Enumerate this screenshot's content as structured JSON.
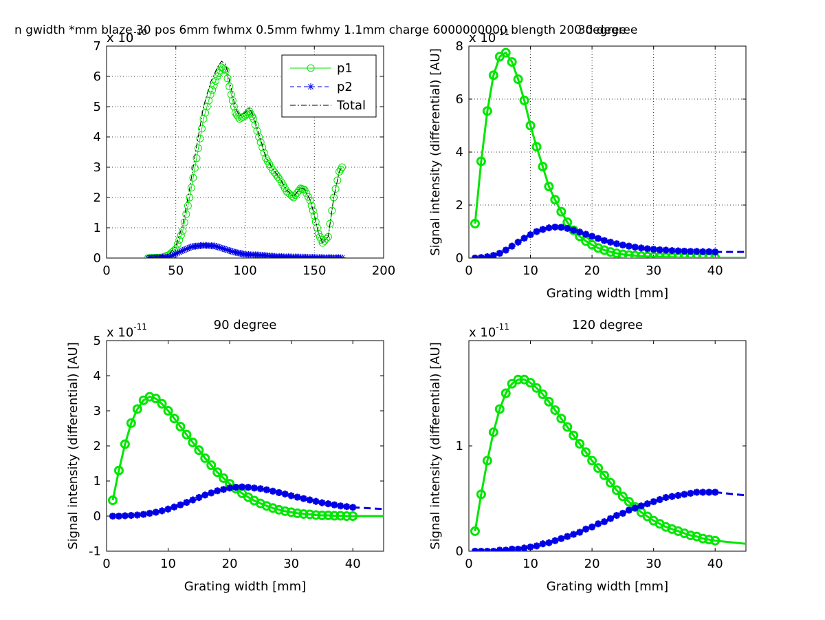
{
  "figure": {
    "colors": {
      "p1": "#00e600",
      "p2": "#0000e6",
      "total": "#000000",
      "grid": "#000000",
      "axes": "#000000"
    }
  },
  "chart_data": [
    {
      "type": "line",
      "title": "n gwidth *mm blaze 30 pos 6mm fwhmx 0.5mm fwhmy 1.1mm charge 6000000000 blength 200 degree",
      "title_overlap": "30 degree",
      "xlabel": "",
      "ylabel": "",
      "xlim": [
        0,
        200
      ],
      "ylim": [
        0,
        7
      ],
      "xticks": [
        0,
        50,
        100,
        150,
        200
      ],
      "yticks": [
        0,
        1,
        2,
        3,
        4,
        5,
        6,
        7
      ],
      "exponent_label": "x 10",
      "exponent_power": "-10",
      "grid": true,
      "legend": {
        "position": "top-right",
        "entries": [
          "p1",
          "p2",
          "Total"
        ]
      },
      "series": [
        {
          "name": "p1",
          "marker": "circle",
          "style": "solid",
          "points": [
            [
              30,
              0
            ],
            [
              40,
              0.02
            ],
            [
              45,
              0.1
            ],
            [
              50,
              0.3
            ],
            [
              55,
              0.9
            ],
            [
              60,
              2.0
            ],
            [
              65,
              3.3
            ],
            [
              70,
              4.6
            ],
            [
              75,
              5.4
            ],
            [
              80,
              6.0
            ],
            [
              83,
              6.3
            ],
            [
              86,
              6.2
            ],
            [
              90,
              5.4
            ],
            [
              93,
              4.8
            ],
            [
              96,
              4.6
            ],
            [
              100,
              4.7
            ],
            [
              103,
              4.85
            ],
            [
              106,
              4.6
            ],
            [
              110,
              4.0
            ],
            [
              115,
              3.3
            ],
            [
              120,
              2.9
            ],
            [
              125,
              2.6
            ],
            [
              130,
              2.2
            ],
            [
              135,
              2.0
            ],
            [
              140,
              2.3
            ],
            [
              143,
              2.25
            ],
            [
              147,
              1.9
            ],
            [
              150,
              1.4
            ],
            [
              153,
              0.8
            ],
            [
              156,
              0.5
            ],
            [
              160,
              0.7
            ],
            [
              164,
              2.0
            ],
            [
              168,
              2.85
            ],
            [
              170,
              3.0
            ]
          ]
        },
        {
          "name": "p2",
          "marker": "star",
          "style": "dashed",
          "points": [
            [
              30,
              0
            ],
            [
              45,
              0.03
            ],
            [
              55,
              0.25
            ],
            [
              62,
              0.38
            ],
            [
              70,
              0.42
            ],
            [
              78,
              0.4
            ],
            [
              85,
              0.3
            ],
            [
              92,
              0.2
            ],
            [
              100,
              0.12
            ],
            [
              110,
              0.1
            ],
            [
              120,
              0.06
            ],
            [
              130,
              0.04
            ],
            [
              140,
              0.03
            ],
            [
              150,
              0.02
            ],
            [
              160,
              0.01
            ],
            [
              170,
              0.01
            ]
          ]
        },
        {
          "name": "Total",
          "marker": "none",
          "style": "dashdot",
          "points": [
            [
              30,
              0
            ],
            [
              45,
              0.12
            ],
            [
              50,
              0.4
            ],
            [
              55,
              1.1
            ],
            [
              60,
              2.3
            ],
            [
              65,
              3.7
            ],
            [
              70,
              5.0
            ],
            [
              75,
              5.8
            ],
            [
              80,
              6.3
            ],
            [
              83,
              6.5
            ],
            [
              86,
              6.4
            ],
            [
              90,
              5.6
            ],
            [
              93,
              4.95
            ],
            [
              96,
              4.7
            ],
            [
              100,
              4.8
            ],
            [
              103,
              4.95
            ],
            [
              106,
              4.7
            ],
            [
              110,
              4.1
            ],
            [
              115,
              3.35
            ],
            [
              120,
              2.95
            ],
            [
              125,
              2.65
            ],
            [
              130,
              2.25
            ],
            [
              135,
              2.03
            ],
            [
              140,
              2.33
            ],
            [
              143,
              2.28
            ],
            [
              147,
              1.92
            ],
            [
              150,
              1.42
            ],
            [
              153,
              0.82
            ],
            [
              156,
              0.52
            ],
            [
              160,
              0.71
            ],
            [
              164,
              2.01
            ],
            [
              168,
              2.86
            ],
            [
              170,
              3.01
            ]
          ]
        }
      ]
    },
    {
      "type": "line",
      "title": "",
      "xlabel": "Grating width [mm]",
      "ylabel": "Signal intensity (differential) [AU]",
      "xlim": [
        0,
        45
      ],
      "ylim": [
        0,
        8
      ],
      "xticks": [
        0,
        10,
        20,
        30,
        40
      ],
      "yticks": [
        0,
        2,
        4,
        6,
        8
      ],
      "exponent_label": "x 10",
      "exponent_power": "-11",
      "grid": true,
      "series": [
        {
          "name": "p1",
          "marker": "circle",
          "style": "solid",
          "width": 3,
          "x": [
            1,
            2,
            3,
            4,
            5,
            6,
            7,
            8,
            9,
            10,
            11,
            12,
            13,
            14,
            15,
            16,
            17,
            18,
            19,
            20,
            21,
            22,
            23,
            24,
            25,
            26,
            27,
            28,
            29,
            30,
            31,
            32,
            33,
            34,
            35,
            36,
            37,
            38,
            39,
            40
          ],
          "y": [
            1.3,
            3.65,
            5.55,
            6.9,
            7.6,
            7.75,
            7.4,
            6.75,
            5.95,
            5.0,
            4.2,
            3.45,
            2.7,
            2.2,
            1.75,
            1.35,
            1.05,
            0.82,
            0.64,
            0.5,
            0.38,
            0.3,
            0.23,
            0.18,
            0.14,
            0.11,
            0.09,
            0.07,
            0.06,
            0.05,
            0.04,
            0.03,
            0.03,
            0.02,
            0.02,
            0.02,
            0.01,
            0.01,
            0.01,
            0.01
          ],
          "extend_to": [
            45,
            0.01
          ]
        },
        {
          "name": "p2",
          "marker": "star",
          "style": "dashed",
          "width": 3,
          "x": [
            1,
            2,
            3,
            4,
            5,
            6,
            7,
            8,
            9,
            10,
            11,
            12,
            13,
            14,
            15,
            16,
            17,
            18,
            19,
            20,
            21,
            22,
            23,
            24,
            25,
            26,
            27,
            28,
            29,
            30,
            31,
            32,
            33,
            34,
            35,
            36,
            37,
            38,
            39,
            40
          ],
          "y": [
            0.0,
            0.02,
            0.05,
            0.1,
            0.18,
            0.3,
            0.45,
            0.6,
            0.75,
            0.88,
            1.0,
            1.08,
            1.14,
            1.17,
            1.16,
            1.12,
            1.05,
            0.98,
            0.9,
            0.82,
            0.74,
            0.66,
            0.6,
            0.54,
            0.49,
            0.45,
            0.41,
            0.38,
            0.35,
            0.33,
            0.31,
            0.3,
            0.28,
            0.27,
            0.26,
            0.25,
            0.25,
            0.24,
            0.24,
            0.23
          ],
          "extend_to": [
            45,
            0.23
          ]
        }
      ]
    },
    {
      "type": "line",
      "title": "90 degree",
      "xlabel": "Grating width [mm]",
      "ylabel": "Signal intensity (differential) [AU]",
      "xlim": [
        0,
        45
      ],
      "ylim": [
        -1,
        5
      ],
      "xticks": [
        0,
        10,
        20,
        30,
        40
      ],
      "yticks": [
        -1,
        0,
        1,
        2,
        3,
        4,
        5
      ],
      "exponent_label": "x 10",
      "exponent_power": "-11",
      "grid": false,
      "series": [
        {
          "name": "p1",
          "marker": "circle",
          "style": "solid",
          "width": 3,
          "x": [
            1,
            2,
            3,
            4,
            5,
            6,
            7,
            8,
            9,
            10,
            11,
            12,
            13,
            14,
            15,
            16,
            17,
            18,
            19,
            20,
            21,
            22,
            23,
            24,
            25,
            26,
            27,
            28,
            29,
            30,
            31,
            32,
            33,
            34,
            35,
            36,
            37,
            38,
            39,
            40
          ],
          "y": [
            0.45,
            1.3,
            2.05,
            2.65,
            3.05,
            3.3,
            3.4,
            3.35,
            3.2,
            3.0,
            2.78,
            2.55,
            2.32,
            2.1,
            1.88,
            1.65,
            1.45,
            1.25,
            1.08,
            0.92,
            0.78,
            0.65,
            0.54,
            0.44,
            0.36,
            0.29,
            0.23,
            0.18,
            0.14,
            0.11,
            0.08,
            0.06,
            0.05,
            0.03,
            0.02,
            0.02,
            0.01,
            0.01,
            0.0,
            0.0
          ],
          "extend_to": [
            45,
            0.0
          ]
        },
        {
          "name": "p2",
          "marker": "star",
          "style": "dashed",
          "width": 3,
          "x": [
            1,
            2,
            3,
            4,
            5,
            6,
            7,
            8,
            9,
            10,
            11,
            12,
            13,
            14,
            15,
            16,
            17,
            18,
            19,
            20,
            21,
            22,
            23,
            24,
            25,
            26,
            27,
            28,
            29,
            30,
            31,
            32,
            33,
            34,
            35,
            36,
            37,
            38,
            39,
            40
          ],
          "y": [
            0.0,
            0.0,
            0.01,
            0.02,
            0.03,
            0.05,
            0.08,
            0.11,
            0.15,
            0.2,
            0.26,
            0.32,
            0.39,
            0.46,
            0.53,
            0.6,
            0.66,
            0.72,
            0.76,
            0.8,
            0.82,
            0.83,
            0.82,
            0.8,
            0.78,
            0.75,
            0.71,
            0.67,
            0.63,
            0.58,
            0.54,
            0.5,
            0.46,
            0.42,
            0.38,
            0.35,
            0.32,
            0.29,
            0.27,
            0.25
          ],
          "extend_to": [
            45,
            0.2
          ]
        }
      ]
    },
    {
      "type": "line",
      "title": "120 degree",
      "xlabel": "Grating width [mm]",
      "ylabel": "Signal intensity (differential) [AU]",
      "xlim": [
        0,
        45
      ],
      "ylim": [
        0,
        2
      ],
      "xticks": [
        0,
        10,
        20,
        30,
        40
      ],
      "yticks": [
        0,
        1
      ],
      "exponent_label": "x 10",
      "exponent_power": "-11",
      "grid": false,
      "series": [
        {
          "name": "p1",
          "marker": "circle",
          "style": "solid",
          "width": 3,
          "x": [
            1,
            2,
            3,
            4,
            5,
            6,
            7,
            8,
            9,
            10,
            11,
            12,
            13,
            14,
            15,
            16,
            17,
            18,
            19,
            20,
            21,
            22,
            23,
            24,
            25,
            26,
            27,
            28,
            29,
            30,
            31,
            32,
            33,
            34,
            35,
            36,
            37,
            38,
            39,
            40
          ],
          "y": [
            0.19,
            0.54,
            0.86,
            1.13,
            1.35,
            1.5,
            1.59,
            1.63,
            1.63,
            1.6,
            1.55,
            1.49,
            1.42,
            1.34,
            1.26,
            1.18,
            1.1,
            1.02,
            0.94,
            0.86,
            0.79,
            0.72,
            0.65,
            0.58,
            0.52,
            0.47,
            0.42,
            0.37,
            0.33,
            0.29,
            0.26,
            0.23,
            0.21,
            0.19,
            0.17,
            0.15,
            0.14,
            0.12,
            0.11,
            0.1
          ],
          "extend_to": [
            45,
            0.07
          ]
        },
        {
          "name": "p2",
          "marker": "star",
          "style": "dashed",
          "width": 3,
          "x": [
            1,
            2,
            3,
            4,
            5,
            6,
            7,
            8,
            9,
            10,
            11,
            12,
            13,
            14,
            15,
            16,
            17,
            18,
            19,
            20,
            21,
            22,
            23,
            24,
            25,
            26,
            27,
            28,
            29,
            30,
            31,
            32,
            33,
            34,
            35,
            36,
            37,
            38,
            39,
            40
          ],
          "y": [
            0.0,
            0.0,
            0.0,
            0.0,
            0.01,
            0.01,
            0.02,
            0.02,
            0.03,
            0.04,
            0.05,
            0.07,
            0.08,
            0.1,
            0.12,
            0.14,
            0.16,
            0.18,
            0.21,
            0.23,
            0.26,
            0.28,
            0.31,
            0.34,
            0.36,
            0.39,
            0.41,
            0.43,
            0.45,
            0.47,
            0.49,
            0.51,
            0.52,
            0.53,
            0.54,
            0.55,
            0.56,
            0.56,
            0.56,
            0.56
          ],
          "extend_to": [
            45,
            0.53
          ]
        }
      ]
    }
  ]
}
